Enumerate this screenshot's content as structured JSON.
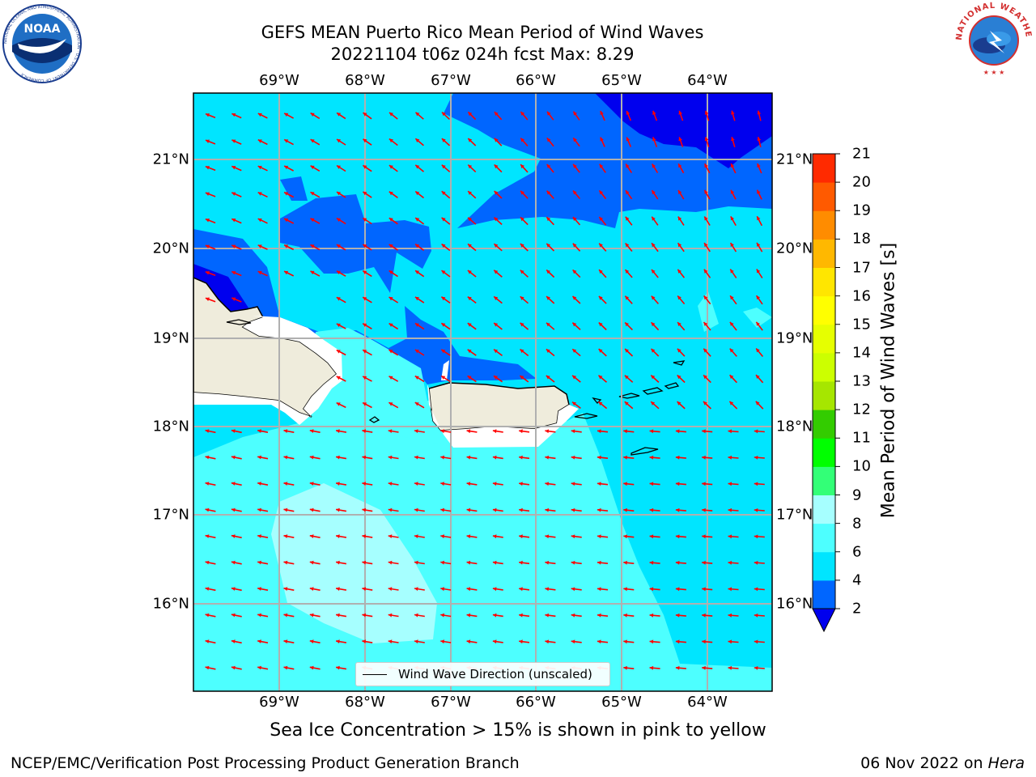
{
  "title": {
    "line1": "GEFS MEAN Puerto Rico Mean Period of Wind Waves",
    "line2": "20221104 t06z 024h fcst   Max: 8.29"
  },
  "map": {
    "lon_labels": [
      "69°W",
      "68°W",
      "67°W",
      "66°W",
      "65°W",
      "64°W"
    ],
    "lat_labels": [
      "21°N",
      "20°N",
      "19°N",
      "18°N",
      "17°N",
      "16°N"
    ],
    "legend_label": "Wind Wave Direction (unscaled)",
    "arrow_color": "#ff0000",
    "land_color": "#efecdc"
  },
  "colorbar": {
    "title": "Mean Period of Wind Waves [s]",
    "ticks": [
      "2",
      "4",
      "6",
      "8",
      "9",
      "10",
      "11",
      "12",
      "13",
      "14",
      "15",
      "16",
      "17",
      "18",
      "19",
      "20",
      "21"
    ],
    "colors": [
      "#0066ff",
      "#00e5ff",
      "#4dffff",
      "#a6ffff",
      "#33ff77",
      "#00ff00",
      "#33cc00",
      "#a6e600",
      "#ccff00",
      "#e6ff00",
      "#ffff00",
      "#ffe600",
      "#ffb800",
      "#ff8c00",
      "#ff5a00",
      "#ff2a00"
    ],
    "under_color": "#0000ee"
  },
  "subtitle": "Sea Ice Concentration > 15% is shown in pink to yellow",
  "footer": {
    "left": "NCEP/EMC/Verification Post Processing Product Generation Branch",
    "right_date": "06 Nov 2022 on ",
    "right_host": "Hera"
  },
  "logos": {
    "noaa": "NOAA",
    "noaa_ring": "NATIONAL OCEANIC AND ATMOSPHERIC ADMINISTRATION · U.S. DEPARTMENT OF COMMERCE",
    "nws_ring": "NATIONAL WEATHER SERVICE"
  }
}
